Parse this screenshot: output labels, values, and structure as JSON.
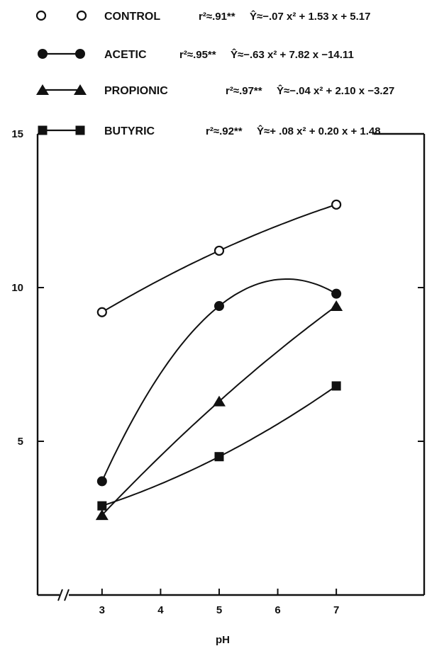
{
  "chart_data": {
    "type": "line",
    "xlabel": "pH",
    "ylabel": "",
    "x_ticks": [
      3,
      4,
      5,
      6,
      7
    ],
    "y_ticks": [
      5,
      10,
      15
    ],
    "xlim": [
      1.9,
      8.5
    ],
    "ylim": [
      0,
      15
    ],
    "grid": false,
    "legend_position": "top",
    "series": [
      {
        "name": "CONTROL",
        "marker": "open-circle",
        "r2": "r²≈.91**",
        "equation": "Ŷ≈−.07 x² + 1.53 x + 5.17",
        "x": [
          3,
          5,
          7
        ],
        "y": [
          9.2,
          11.2,
          12.7
        ]
      },
      {
        "name": "ACETIC",
        "marker": "filled-circle",
        "r2": "r²≈.95**",
        "equation": "Ŷ≈−.63 x² + 7.82 x −14.11",
        "x": [
          3,
          5,
          7
        ],
        "y": [
          3.7,
          9.4,
          9.8
        ]
      },
      {
        "name": "PROPIONIC",
        "marker": "filled-triangle",
        "r2": "r²≈.97**",
        "equation": "Ŷ≈−.04 x² + 2.10 x −3.27",
        "x": [
          3,
          5,
          7
        ],
        "y": [
          2.6,
          6.3,
          9.4
        ]
      },
      {
        "name": "BUTYRIC",
        "marker": "filled-square",
        "r2": "r²≈.92**",
        "equation": "Ŷ≈+ .08 x² + 0.20 x + 1.48",
        "x": [
          3,
          5,
          7
        ],
        "y": [
          2.9,
          4.5,
          6.8
        ]
      }
    ]
  }
}
